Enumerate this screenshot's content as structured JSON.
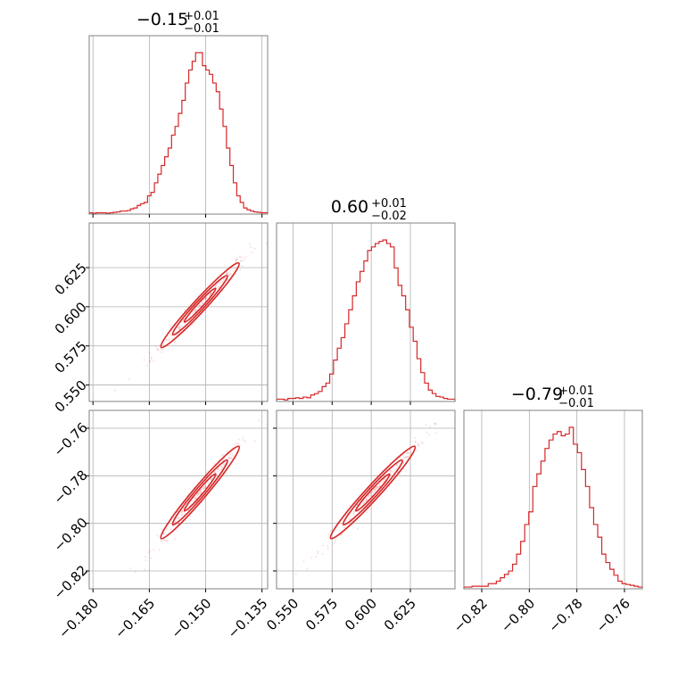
{
  "chart_data": {
    "type": "corner",
    "color": "#d62728",
    "grid": true,
    "params": [
      {
        "title": {
          "main": "−0.15",
          "sup": "+0.01",
          "sub": "−0.01"
        },
        "median": -0.1515,
        "sigma": 0.0052,
        "range": [
          -0.181,
          -0.1335
        ],
        "ticks": [
          -0.18,
          -0.165,
          -0.15,
          -0.135
        ],
        "tick_labels": [
          "−0.180",
          "−0.165",
          "−0.150",
          "−0.135"
        ]
      },
      {
        "title": {
          "main": "0.60",
          "sup": "+0.01",
          "sub": "−0.02"
        },
        "median": 0.601,
        "sigma": 0.0135,
        "range": [
          0.5395,
          0.6535
        ],
        "ticks": [
          0.55,
          0.575,
          0.6,
          0.625
        ],
        "tick_labels": [
          "0.550",
          "0.575",
          "0.600",
          "0.625"
        ]
      },
      {
        "title": {
          "main": "−0.79",
          "sup": "+0.01",
          "sub": "−0.01"
        },
        "median": -0.787,
        "sigma": 0.0097,
        "range": [
          -0.8275,
          -0.7525
        ],
        "ticks": [
          -0.82,
          -0.8,
          -0.78,
          -0.76
        ],
        "tick_labels": [
          "−0.82",
          "−0.80",
          "−0.78",
          "−0.76"
        ]
      }
    ],
    "histograms": [
      {
        "param": 0,
        "counts": [
          1,
          0,
          1,
          1,
          1,
          0,
          1,
          2,
          3,
          5,
          5,
          6,
          10,
          12,
          18,
          22,
          25,
          40,
          48,
          70,
          90,
          110,
          130,
          150,
          180,
          200,
          230,
          260,
          300,
          330,
          350,
          370,
          370,
          340,
          330,
          320,
          300,
          280,
          240,
          200,
          150,
          110,
          70,
          40,
          25,
          12,
          8,
          5,
          3,
          2,
          1,
          1
        ]
      },
      {
        "param": 1,
        "counts": [
          2,
          2,
          1,
          3,
          3,
          4,
          3,
          5,
          4,
          8,
          10,
          13,
          20,
          25,
          38,
          58,
          75,
          90,
          110,
          130,
          150,
          170,
          185,
          200,
          215,
          220,
          225,
          228,
          230,
          225,
          220,
          190,
          165,
          150,
          130,
          105,
          85,
          60,
          40,
          25,
          15,
          10,
          6,
          5,
          3,
          2,
          2
        ]
      },
      {
        "param": 2,
        "counts": [
          1,
          1,
          2,
          2,
          2,
          2,
          5,
          5,
          8,
          12,
          16,
          20,
          28,
          40,
          55,
          75,
          90,
          120,
          135,
          150,
          165,
          175,
          182,
          185,
          180,
          182,
          190,
          170,
          160,
          140,
          120,
          95,
          75,
          60,
          40,
          30,
          22,
          15,
          8,
          5,
          4,
          3,
          2,
          1
        ]
      }
    ],
    "pairs": [
      {
        "x": 0,
        "y": 1
      },
      {
        "x": 0,
        "y": 2
      },
      {
        "x": 1,
        "y": 2
      }
    ]
  }
}
